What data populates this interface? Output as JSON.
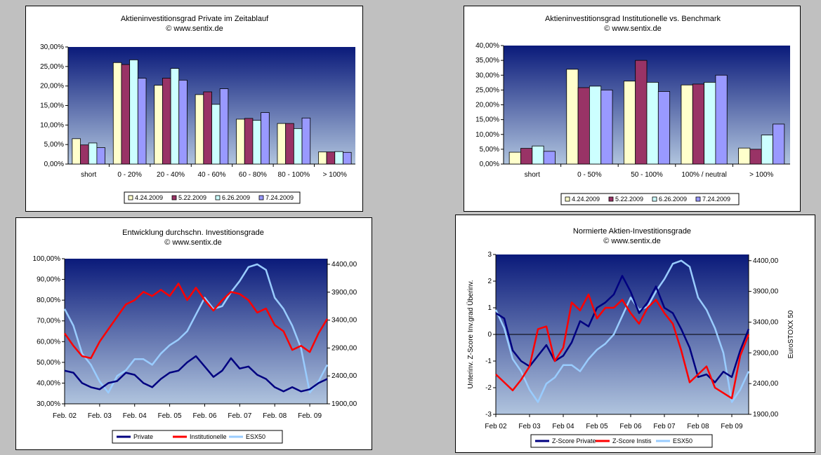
{
  "colors": {
    "plot_top": "#0a1a7a",
    "plot_bottom": "#b0c4de",
    "bar_series": [
      "#ffffcc",
      "#993366",
      "#ccffff",
      "#9999ff"
    ],
    "line_series": [
      "#000080",
      "#ff0000",
      "#99ccff"
    ]
  },
  "chart_data": [
    {
      "type": "bar",
      "title": "Aktieninvestitionsgrad Private im Zeitablauf",
      "subtitle": "© www.sentix.de",
      "categories": [
        "short",
        "0 - 20%",
        "20 - 40%",
        "40 - 60%",
        "60 - 80%",
        "80 - 100%",
        "> 100%"
      ],
      "series": [
        {
          "name": "4.24.2009",
          "values": [
            6.5,
            26.0,
            20.2,
            17.8,
            11.5,
            10.4,
            3.1
          ]
        },
        {
          "name": "5.22.2009",
          "values": [
            4.9,
            25.5,
            22.0,
            18.5,
            11.7,
            10.4,
            3.1
          ]
        },
        {
          "name": "6.26.2009",
          "values": [
            5.4,
            26.7,
            24.5,
            15.3,
            11.2,
            9.1,
            3.2
          ]
        },
        {
          "name": "7.24.2009",
          "values": [
            4.2,
            22.0,
            21.5,
            19.3,
            13.2,
            11.8,
            3.0
          ]
        }
      ],
      "ylim": [
        0,
        30
      ],
      "yticks": [
        "0,00%",
        "5,00%",
        "10,00%",
        "15,00%",
        "20,00%",
        "25,00%",
        "30,00%"
      ],
      "grid": false,
      "legend": "bottom"
    },
    {
      "type": "bar",
      "title": "Aktieninvestitionsgrad Institutionelle vs. Benchmark",
      "subtitle": "© www.sentix.de",
      "categories": [
        "short",
        "0 - 50%",
        "50 - 100%",
        "100% / neutral",
        "> 100%"
      ],
      "series": [
        {
          "name": "4.24.2009",
          "values": [
            4.0,
            32.0,
            28.0,
            26.7,
            5.4
          ]
        },
        {
          "name": "5.22.2009",
          "values": [
            5.3,
            25.8,
            35.0,
            27.0,
            5.0
          ]
        },
        {
          "name": "6.26.2009",
          "values": [
            6.1,
            26.3,
            27.6,
            27.6,
            9.8
          ]
        },
        {
          "name": "7.24.2009",
          "values": [
            4.3,
            25.0,
            24.5,
            30.0,
            13.5
          ]
        }
      ],
      "ylim": [
        0,
        40
      ],
      "yticks": [
        "0,00%",
        "5,00%",
        "10,00%",
        "15,00%",
        "20,00%",
        "25,00%",
        "30,00%",
        "35,00%",
        "40,00%"
      ],
      "grid": false,
      "legend": "bottom"
    },
    {
      "type": "line",
      "title": "Entwicklung durchschn. Investitionsgrade",
      "subtitle": "© www.sentix.de",
      "x": [
        2002.0,
        2002.25,
        2002.5,
        2002.75,
        2003.0,
        2003.25,
        2003.5,
        2003.75,
        2004.0,
        2004.25,
        2004.5,
        2004.75,
        2005.0,
        2005.25,
        2005.5,
        2005.75,
        2006.0,
        2006.25,
        2006.5,
        2006.75,
        2007.0,
        2007.25,
        2007.5,
        2007.75,
        2008.0,
        2008.25,
        2008.5,
        2008.75,
        2009.0,
        2009.25,
        2009.5
      ],
      "series": [
        {
          "name": "Private",
          "axis": "left",
          "values": [
            46,
            45,
            40,
            38,
            37,
            40,
            41,
            45,
            44,
            40,
            38,
            42,
            45,
            46,
            50,
            53,
            48,
            43,
            46,
            52,
            47,
            48,
            44,
            42,
            38,
            36,
            38,
            36,
            37,
            40,
            42
          ]
        },
        {
          "name": "Institutionelle",
          "axis": "left",
          "values": [
            64,
            58,
            53,
            52,
            60,
            66,
            72,
            78,
            80,
            84,
            82,
            85,
            82,
            88,
            80,
            86,
            80,
            75,
            80,
            84,
            83,
            80,
            74,
            76,
            68,
            65,
            56,
            58,
            55,
            64,
            71
          ]
        },
        {
          "name": "ESX50",
          "axis": "right",
          "values": [
            3600,
            3300,
            2800,
            2600,
            2300,
            2100,
            2400,
            2500,
            2700,
            2700,
            2600,
            2800,
            2950,
            3050,
            3200,
            3500,
            3800,
            3600,
            3650,
            3900,
            4100,
            4350,
            4400,
            4300,
            3800,
            3600,
            3300,
            2900,
            2100,
            2300,
            2600
          ]
        }
      ],
      "x_tick_labels": [
        "Feb. 02",
        "Feb. 03",
        "Feb. 04",
        "Feb. 05",
        "Feb. 06",
        "Feb. 07",
        "Feb. 08",
        "Feb. 09"
      ],
      "ylim": [
        30,
        100
      ],
      "yticks": [
        "30,00%",
        "40,00%",
        "50,00%",
        "60,00%",
        "70,00%",
        "80,00%",
        "90,00%",
        "100,00%"
      ],
      "y2lim": [
        1900,
        4500
      ],
      "y2ticks": [
        "1900,00",
        "2400,00",
        "2900,00",
        "3400,00",
        "3900,00",
        "4400,00"
      ],
      "grid": false,
      "legend": "bottom"
    },
    {
      "type": "line",
      "title": "Normierte Aktien-Investitionsgrade",
      "subtitle": "© www.sentix.de",
      "x": [
        2002.0,
        2002.25,
        2002.5,
        2002.75,
        2003.0,
        2003.25,
        2003.5,
        2003.75,
        2004.0,
        2004.25,
        2004.5,
        2004.75,
        2005.0,
        2005.25,
        2005.5,
        2005.75,
        2006.0,
        2006.25,
        2006.5,
        2006.75,
        2007.0,
        2007.25,
        2007.5,
        2007.75,
        2008.0,
        2008.25,
        2008.5,
        2008.75,
        2009.0,
        2009.25,
        2009.5
      ],
      "series": [
        {
          "name": "Z-Score Private",
          "axis": "left",
          "values": [
            0.8,
            0.6,
            -0.6,
            -1.0,
            -1.2,
            -0.8,
            -0.4,
            -1.0,
            -0.8,
            -0.3,
            0.5,
            0.3,
            1.0,
            1.2,
            1.5,
            2.2,
            1.6,
            0.8,
            1.2,
            1.8,
            1.0,
            0.8,
            0.2,
            -0.5,
            -1.6,
            -1.5,
            -1.8,
            -1.4,
            -1.6,
            -0.6,
            0.2
          ]
        },
        {
          "name": "Z-Score Instis",
          "axis": "left",
          "values": [
            -1.5,
            -1.8,
            -2.1,
            -1.7,
            -1.2,
            0.2,
            0.3,
            -1.0,
            -0.5,
            1.2,
            0.9,
            1.5,
            0.6,
            1.0,
            1.0,
            1.3,
            0.8,
            0.4,
            1.0,
            1.3,
            0.8,
            0.4,
            -0.6,
            -1.8,
            -1.5,
            -1.2,
            -2.0,
            -2.2,
            -2.4,
            -0.8,
            0.0
          ]
        },
        {
          "name": "ESX50",
          "axis": "right",
          "values": [
            3600,
            3300,
            2800,
            2600,
            2300,
            2100,
            2400,
            2500,
            2700,
            2700,
            2600,
            2800,
            2950,
            3050,
            3200,
            3500,
            3800,
            3600,
            3650,
            3900,
            4100,
            4350,
            4400,
            4300,
            3800,
            3600,
            3300,
            2900,
            2100,
            2300,
            2600
          ]
        }
      ],
      "x_tick_labels": [
        "Feb 02",
        "Feb 03",
        "Feb 04",
        "Feb 05",
        "Feb 06",
        "Feb 07",
        "Feb 08",
        "Feb 09"
      ],
      "ylim": [
        -3,
        3
      ],
      "yticks": [
        "-3",
        "-2",
        "-1",
        "0",
        "1",
        "2",
        "3"
      ],
      "y2lim": [
        1900,
        4500
      ],
      "y2ticks": [
        "1900,00",
        "2400,00",
        "2900,00",
        "3400,00",
        "3900,00",
        "4400,00"
      ],
      "ylabel": "Unterinv.   Z-Score Inv.grad   Überinv.",
      "y2label": "EuroSTOXX 50",
      "grid": false,
      "legend": "bottom"
    }
  ]
}
